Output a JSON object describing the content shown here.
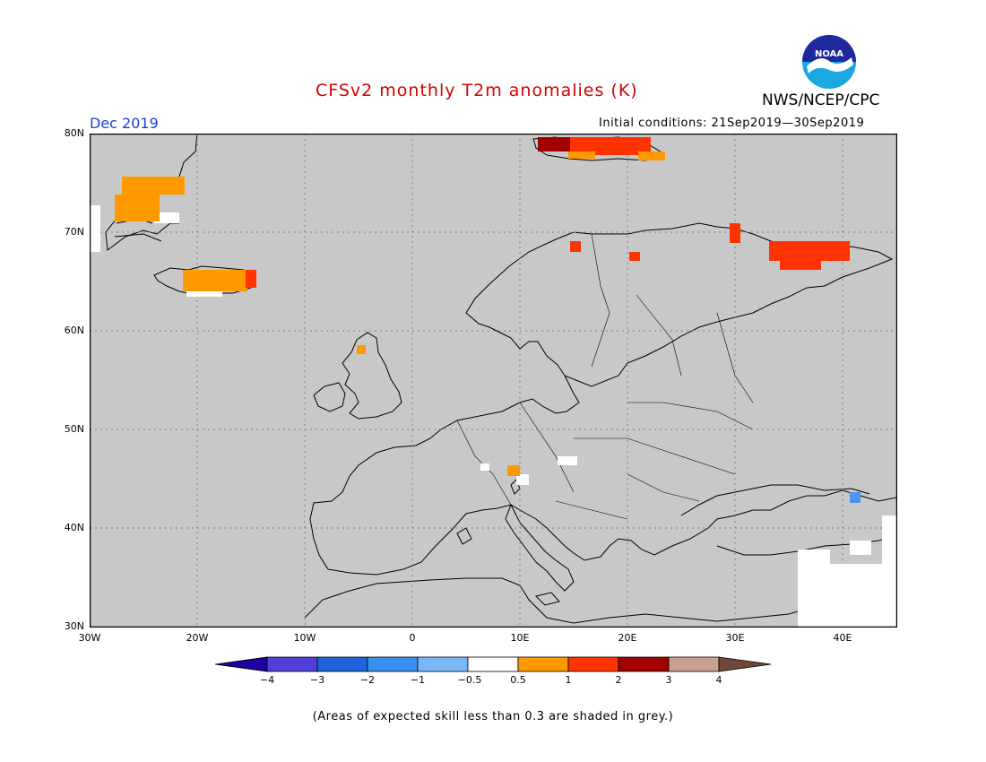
{
  "header": {
    "title": "CFSv2 monthly T2m anomalies (K)",
    "month": "Dec 2019",
    "initial_conditions": "Initial conditions: 21Sep2019—30Sep2019",
    "agency": "NWS/NCEP/CPC",
    "logo": {
      "text": "NOAA",
      "icon": "noaa-logo-icon"
    }
  },
  "map": {
    "region": "Europe",
    "background_color": "#c8c8c8",
    "lon_range": [
      -30,
      45
    ],
    "lat_range": [
      30,
      80
    ],
    "lat_labels": [
      "80N",
      "70N",
      "60N",
      "50N",
      "40N",
      "30N"
    ],
    "lon_labels": [
      "30W",
      "20W",
      "10W",
      "0",
      "10E",
      "20E",
      "30E",
      "40E"
    ],
    "anomaly_patches": [
      {
        "name": "greenland-east",
        "category": "0.5 to 1",
        "color": "#ff9900"
      },
      {
        "name": "iceland",
        "category": "0.5 to 1",
        "color": "#ff9900"
      },
      {
        "name": "iceland-east-tip",
        "category": "1 to 2",
        "color": "#ff3300"
      },
      {
        "name": "svalbard",
        "category": "1 to 3",
        "color": "#ff3300"
      },
      {
        "name": "kola-white-sea",
        "category": "1 to 2",
        "color": "#ff3300"
      },
      {
        "name": "scotland-north",
        "category": "0.5 to 1",
        "color": "#ff9900"
      },
      {
        "name": "alps",
        "category": "0.5 to 1",
        "color": "#ff9900"
      },
      {
        "name": "caucasus",
        "category": "-1 to -0.5",
        "color": "#4d94ee"
      }
    ]
  },
  "colorbar": {
    "colors": [
      "#1c00a0",
      "#5040d8",
      "#1e64d8",
      "#3a8ef0",
      "#78b8f8",
      "#ffffff",
      "#ff9900",
      "#ff3300",
      "#a00000",
      "#c8a090",
      "#704838"
    ],
    "labels": [
      "−4",
      "−3",
      "−2",
      "−1",
      "−0.5",
      "0.5",
      "1",
      "2",
      "3",
      "4"
    ]
  },
  "footnote": "(Areas of expected skill less than 0.3 are shaded in grey.)"
}
